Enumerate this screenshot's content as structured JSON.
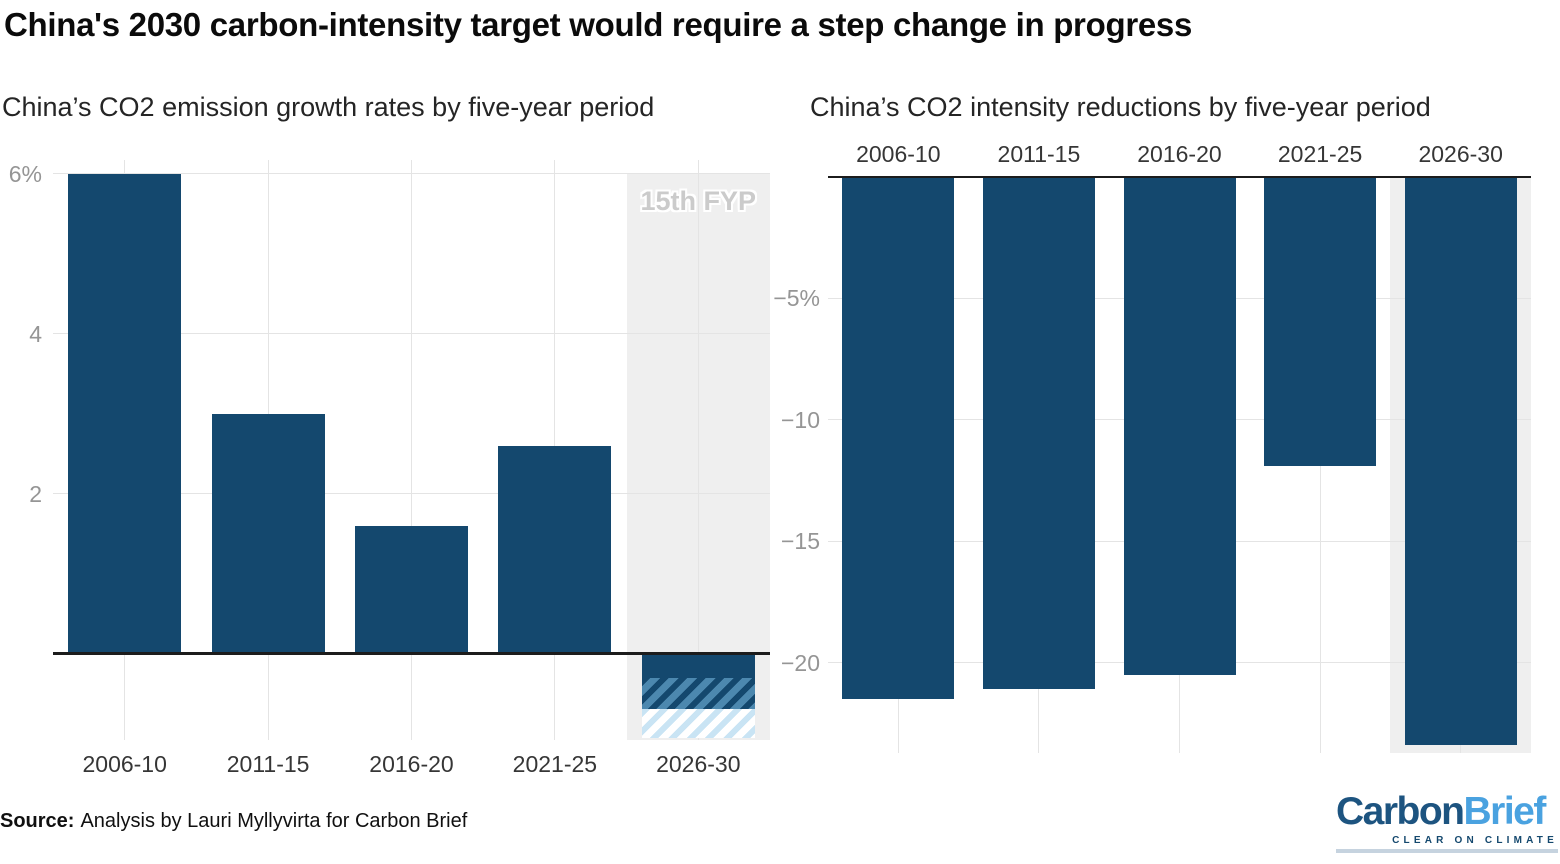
{
  "header": {
    "title": "China's 2030 carbon-intensity target would require a step change in progress"
  },
  "footer": {
    "source_label": "Source:",
    "source_text": "Analysis by Lauri Myllyvirta for Carbon Brief"
  },
  "logo": {
    "word_dark": "Carbon",
    "word_light": "Brief",
    "tagline": "CLEAR ON CLIMATE"
  },
  "colors": {
    "bar": "#14486e",
    "hatch_mid": "#4c88af",
    "hatch_light": "#c9e4f4",
    "band": "#efefef",
    "grid": "#e4e4e4",
    "baseline": "#1c1c1c",
    "tick_label": "#959595",
    "category_label": "#363636",
    "fyp_label": "#cbcbcb",
    "logo_dark": "#1d5480",
    "logo_light": "#4aa2e0",
    "logo_rule": "#c6d3df"
  },
  "chart_data": [
    {
      "type": "bar",
      "title": "China’s CO2 emission growth rates by five-year period",
      "xlabel": "",
      "ylabel": "",
      "categories": [
        "2006-10",
        "2011-15",
        "2016-20",
        "2021-25",
        "2026-30"
      ],
      "values": [
        6.0,
        3.0,
        1.6,
        2.6,
        -1.06
      ],
      "bars": [
        {
          "category": "2006-10",
          "value": 6.0
        },
        {
          "category": "2011-15",
          "value": 3.0
        },
        {
          "category": "2016-20",
          "value": 1.6
        },
        {
          "category": "2021-25",
          "value": 2.6
        },
        {
          "category": "2026-30",
          "segments": [
            {
              "style": "solid",
              "from": 0,
              "to": -0.3
            },
            {
              "style": "hatch-dark",
              "from": -0.3,
              "to": -0.69
            },
            {
              "style": "hatch-light",
              "from": -0.69,
              "to": -1.06
            }
          ]
        }
      ],
      "yticks": [
        {
          "value": 6,
          "label": "6%"
        },
        {
          "value": 4,
          "label": "4"
        },
        {
          "value": 2,
          "label": "2"
        }
      ],
      "ylim": [
        -1.08,
        6.17
      ],
      "grid": true,
      "x_label_position": "bottom",
      "highlight_band": {
        "category": "2026-30",
        "label": "15th FYP"
      }
    },
    {
      "type": "bar",
      "title": "China’s CO2 intensity reductions by five-year period",
      "xlabel": "",
      "ylabel": "",
      "categories": [
        "2006-10",
        "2011-15",
        "2016-20",
        "2021-25",
        "2026-30"
      ],
      "values": [
        -21.5,
        -21.1,
        -20.5,
        -11.9,
        -23.4
      ],
      "bars": [
        {
          "category": "2006-10",
          "value": -21.5
        },
        {
          "category": "2011-15",
          "value": -21.1
        },
        {
          "category": "2016-20",
          "value": -20.5
        },
        {
          "category": "2021-25",
          "value": -11.9
        },
        {
          "category": "2026-30",
          "value": -23.4
        }
      ],
      "yticks": [
        {
          "value": -5,
          "label": "−5%"
        },
        {
          "value": -10,
          "label": "−10"
        },
        {
          "value": -15,
          "label": "−15"
        },
        {
          "value": -20,
          "label": "−20"
        }
      ],
      "ylim": [
        -23.8,
        0
      ],
      "grid": true,
      "x_label_position": "top",
      "highlight_band": {
        "category": "2026-30",
        "label": ""
      }
    }
  ]
}
